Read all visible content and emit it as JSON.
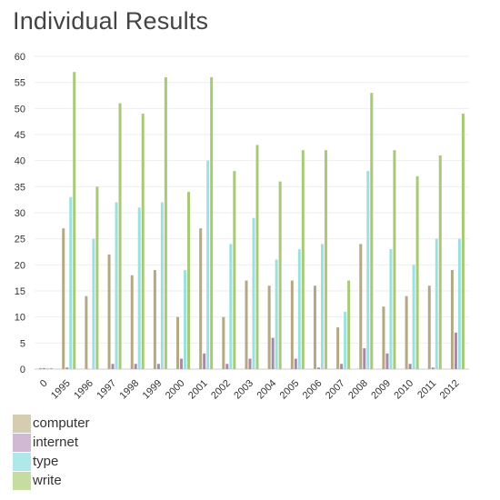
{
  "page": {
    "title": "Individual Results"
  },
  "chart_data": {
    "type": "bar",
    "title": "Individual Results",
    "xlabel": "",
    "ylabel": "",
    "ylim": [
      0,
      60
    ],
    "yticks": [
      0,
      5,
      10,
      15,
      20,
      25,
      30,
      35,
      40,
      45,
      50,
      55,
      60
    ],
    "grid": "horizontal",
    "legend_position": "bottom-left",
    "categories": [
      "0",
      "1995",
      "1996",
      "1997",
      "1998",
      "1999",
      "2000",
      "2001",
      "2002",
      "2003",
      "2004",
      "2005",
      "2006",
      "2007",
      "2008",
      "2009",
      "2010",
      "2011",
      "2012"
    ],
    "series": [
      {
        "name": "computer",
        "color": "#b5a882",
        "legend_color": "#d6ccb0",
        "values": [
          0.2,
          27,
          14,
          22,
          18,
          19,
          10,
          27,
          10,
          17,
          16,
          17,
          16,
          8,
          24,
          12,
          14,
          16,
          19
        ]
      },
      {
        "name": "internet",
        "color": "#a58ba8",
        "legend_color": "#d1b9d3",
        "values": [
          0.2,
          0.3,
          0,
          1,
          1,
          1,
          2,
          3,
          1,
          2,
          6,
          2,
          0.3,
          1,
          4,
          3,
          1,
          0.3,
          7
        ]
      },
      {
        "name": "type",
        "color": "#9de0e0",
        "legend_color": "#aee8e8",
        "values": [
          0.2,
          33,
          25,
          32,
          31,
          32,
          19,
          40,
          24,
          29,
          21,
          23,
          24,
          11,
          38,
          23,
          20,
          25,
          25
        ]
      },
      {
        "name": "write",
        "color": "#a8c977",
        "legend_color": "#c6dda0",
        "values": [
          0.2,
          57,
          35,
          51,
          49,
          56,
          34,
          56,
          38,
          43,
          36,
          42,
          42,
          17,
          53,
          42,
          37,
          41,
          49
        ]
      }
    ]
  }
}
